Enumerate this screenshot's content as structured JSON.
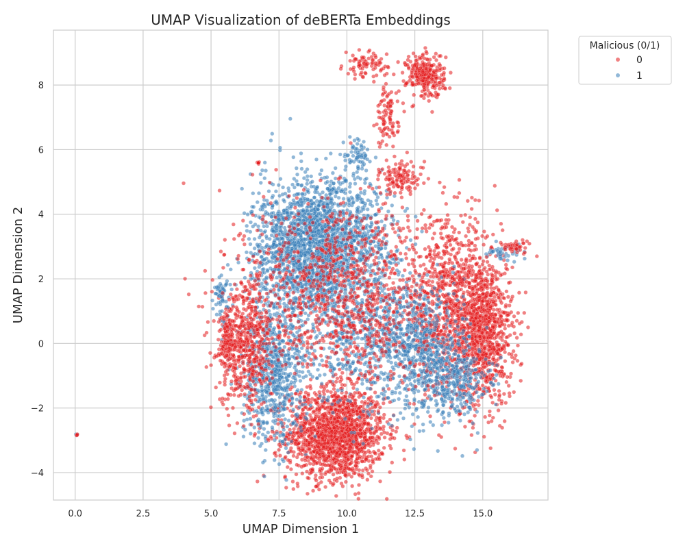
{
  "chart_data": {
    "type": "scatter",
    "title": "UMAP Visualization of deBERTa Embeddings",
    "xlabel": "UMAP Dimension 1",
    "ylabel": "UMAP Dimension 2",
    "xlim": [
      -0.8,
      17.4
    ],
    "ylim": [
      -4.85,
      9.7
    ],
    "xticks": [
      0.0,
      2.5,
      5.0,
      7.5,
      10.0,
      12.5,
      15.0
    ],
    "xtick_labels": [
      "0.0",
      "2.5",
      "5.0",
      "7.5",
      "10.0",
      "12.5",
      "15.0"
    ],
    "yticks": [
      -4,
      -2,
      0,
      2,
      4,
      6,
      8
    ],
    "ytick_labels": [
      "−4",
      "−2",
      "0",
      "2",
      "4",
      "6",
      "8"
    ],
    "grid": true,
    "legend": {
      "title": "Malicious (0/1)",
      "placement": "outside-top-right",
      "entries": [
        {
          "label": "0",
          "color": "#e41a1c"
        },
        {
          "label": "1",
          "color": "#377eb8"
        }
      ]
    },
    "series": [
      {
        "name": "0",
        "color": "#e41a1c",
        "clusters": [
          {
            "cx": 9.6,
            "cy": -2.8,
            "sx": 0.9,
            "sy": 0.7,
            "n": 1600
          },
          {
            "cx": 15.0,
            "cy": 0.3,
            "sx": 0.55,
            "sy": 1.1,
            "n": 900
          },
          {
            "cx": 13.8,
            "cy": 1.2,
            "sx": 0.9,
            "sy": 1.3,
            "n": 900
          },
          {
            "cx": 12.9,
            "cy": 8.3,
            "sx": 0.35,
            "sy": 0.35,
            "n": 260
          },
          {
            "cx": 11.5,
            "cy": 7.0,
            "sx": 0.2,
            "sy": 0.5,
            "n": 90
          },
          {
            "cx": 12.0,
            "cy": 5.1,
            "sx": 0.4,
            "sy": 0.25,
            "n": 110
          },
          {
            "cx": 10.7,
            "cy": 8.6,
            "sx": 0.4,
            "sy": 0.2,
            "n": 80
          },
          {
            "cx": 6.3,
            "cy": 0.0,
            "sx": 0.5,
            "sy": 1.0,
            "n": 500
          },
          {
            "cx": 9.8,
            "cy": 1.5,
            "sx": 1.8,
            "sy": 1.6,
            "n": 1100
          },
          {
            "cx": 5.6,
            "cy": 0.1,
            "sx": 0.2,
            "sy": 0.5,
            "n": 120
          },
          {
            "cx": 16.2,
            "cy": 3.0,
            "sx": 0.3,
            "sy": 0.1,
            "n": 40
          },
          {
            "cx": 6.75,
            "cy": 5.6,
            "sx": 0.03,
            "sy": 0.03,
            "n": 6
          },
          {
            "cx": 0.05,
            "cy": -2.85,
            "sx": 0.03,
            "sy": 0.03,
            "n": 4
          }
        ]
      },
      {
        "name": "1",
        "color": "#377eb8",
        "clusters": [
          {
            "cx": 8.3,
            "cy": 2.8,
            "sx": 0.9,
            "sy": 1.1,
            "n": 1200
          },
          {
            "cx": 9.7,
            "cy": 3.4,
            "sx": 1.0,
            "sy": 0.9,
            "n": 900
          },
          {
            "cx": 7.3,
            "cy": -1.0,
            "sx": 0.6,
            "sy": 1.1,
            "n": 700
          },
          {
            "cx": 10.6,
            "cy": 0.6,
            "sx": 1.1,
            "sy": 1.2,
            "n": 700
          },
          {
            "cx": 12.8,
            "cy": -0.2,
            "sx": 0.8,
            "sy": 1.0,
            "n": 600
          },
          {
            "cx": 14.0,
            "cy": -1.1,
            "sx": 0.6,
            "sy": 0.6,
            "n": 300
          },
          {
            "cx": 5.4,
            "cy": 1.4,
            "sx": 0.15,
            "sy": 0.4,
            "n": 60
          },
          {
            "cx": 10.4,
            "cy": 5.8,
            "sx": 0.3,
            "sy": 0.3,
            "n": 60
          },
          {
            "cx": 15.8,
            "cy": 2.8,
            "sx": 0.3,
            "sy": 0.15,
            "n": 40
          },
          {
            "cx": 0.05,
            "cy": -2.85,
            "sx": 0.03,
            "sy": 0.03,
            "n": 3
          }
        ]
      }
    ]
  }
}
